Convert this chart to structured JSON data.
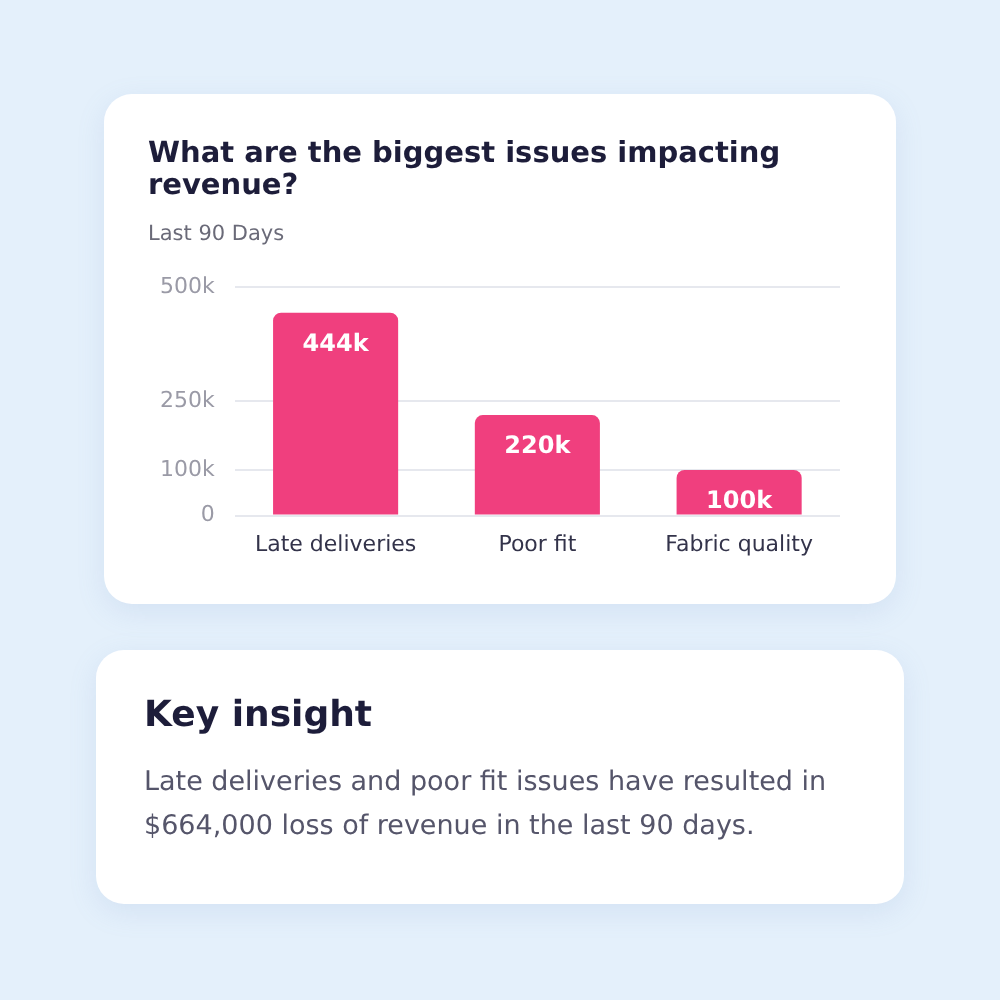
{
  "chart_data": [
    {
      "type": "bar",
      "title": "What are the biggest issues impacting revenue?",
      "subtitle": "Last 90 Days",
      "categories": [
        "Late deliveries",
        "Poor fit",
        "Fabric quality"
      ],
      "values": [
        444000,
        220000,
        100000
      ],
      "color": "#f03f7e",
      "value_labels": [
        "444k",
        "220k",
        "100k"
      ],
      "ylim": [
        0,
        500000
      ],
      "yticks": [
        0,
        {
          "value": 100000,
          "label": "100k"
        },
        {
          "value": 250000,
          "label": "250k"
        },
        {
          "value": 500000,
          "label": "500k"
        }
      ],
      "grid": "y"
    },
    {
      "type": "other",
      "title": "Key insight",
      "annotations": [
        "Late deliveries and poor fit issues have resulted in $664,000 loss of revenue in the last 90 days."
      ]
    }
  ]
}
